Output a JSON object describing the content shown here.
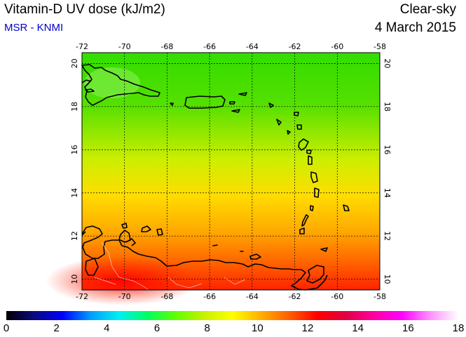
{
  "header": {
    "title": "Vitamin-D UV dose (kJ/m2)",
    "source": "MSR - KNMI",
    "sky_condition": "Clear-sky",
    "date": "4 March 2015"
  },
  "map": {
    "lon_range": [
      -72,
      -58
    ],
    "lat_range": [
      9.5,
      20.5
    ],
    "lon_ticks": [
      "-72",
      "-70",
      "-68",
      "-66",
      "-64",
      "-62",
      "-60",
      "-58"
    ],
    "lat_ticks": [
      "20",
      "18",
      "16",
      "14",
      "12",
      "10"
    ],
    "grid": true,
    "field_gradient": [
      {
        "lat": 20.5,
        "value": 7.6
      },
      {
        "lat": 17.5,
        "value": 8.4
      },
      {
        "lat": 15.0,
        "value": 9.4
      },
      {
        "lat": 13.0,
        "value": 10.3
      },
      {
        "lat": 11.0,
        "value": 11.4
      },
      {
        "lat": 9.5,
        "value": 13.2
      }
    ],
    "colors": {
      "green": "#33dd00",
      "yellow_green": "#aaee00",
      "yellow": "#ffee00",
      "orange": "#ff9900",
      "red": "#ff2200",
      "coastline": "#000000"
    }
  },
  "colorbar": {
    "min": 0,
    "max": 18,
    "labels": [
      "0",
      "2",
      "4",
      "6",
      "8",
      "10",
      "12",
      "14",
      "16",
      "18"
    ],
    "stops": [
      "#000000",
      "#0a0a80",
      "#0000ff",
      "#00a0ff",
      "#00f0f0",
      "#00ff60",
      "#60ff00",
      "#c8f000",
      "#ffff00",
      "#ffb000",
      "#ff6000",
      "#ff0000",
      "#e00040",
      "#ff00a0",
      "#ff00ff",
      "#ff90ff",
      "#ffffff"
    ]
  }
}
